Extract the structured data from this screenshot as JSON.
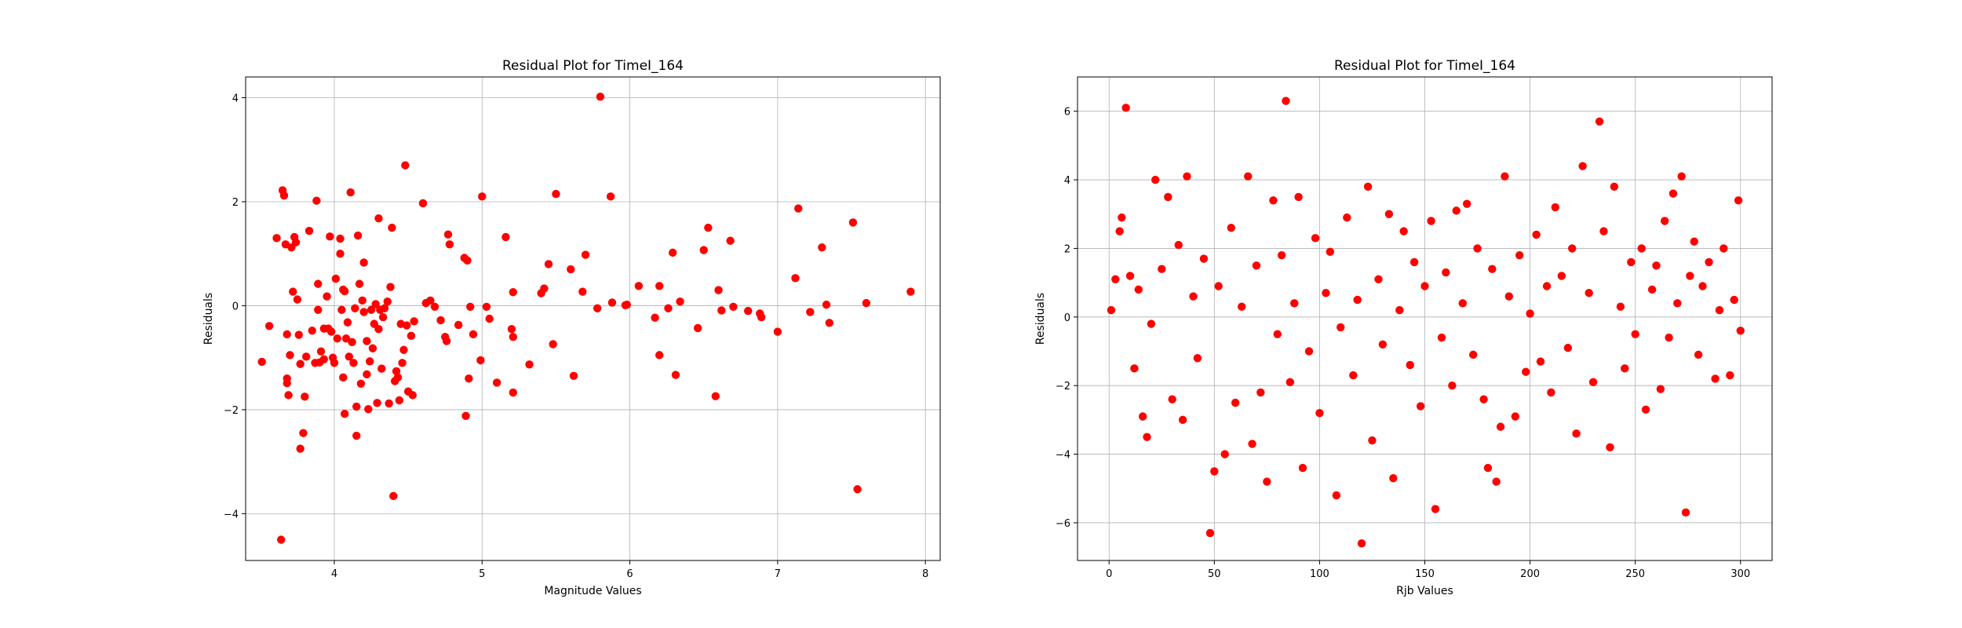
{
  "chart_data": [
    {
      "type": "scatter",
      "title": "Residual Plot for TimeI_164",
      "xlabel": "Magnitude Values",
      "ylabel": "Residuals",
      "xlim": [
        3.4,
        8.1
      ],
      "ylim": [
        -4.9,
        4.4
      ],
      "xticks": [
        4,
        5,
        6,
        7,
        8
      ],
      "yticks": [
        -4,
        -2,
        0,
        2,
        4
      ],
      "xtick_labels": [
        "4",
        "5",
        "6",
        "7",
        "8"
      ],
      "ytick_labels": [
        "−4",
        "−2",
        "0",
        "2",
        "4"
      ],
      "grid": true,
      "legend": "none",
      "marker_color": "#ff0000",
      "points": [
        [
          3.51,
          -1.08
        ],
        [
          3.56,
          -0.39
        ],
        [
          3.61,
          1.3
        ],
        [
          3.64,
          -4.5
        ],
        [
          3.65,
          2.22
        ],
        [
          3.66,
          2.12
        ],
        [
          3.67,
          1.18
        ],
        [
          3.68,
          -0.55
        ],
        [
          3.68,
          -1.4
        ],
        [
          3.68,
          -1.49
        ],
        [
          3.69,
          -1.72
        ],
        [
          3.7,
          -0.95
        ],
        [
          3.71,
          1.12
        ],
        [
          3.72,
          0.27
        ],
        [
          3.73,
          1.32
        ],
        [
          3.74,
          1.22
        ],
        [
          3.75,
          0.12
        ],
        [
          3.76,
          -0.56
        ],
        [
          3.77,
          -1.12
        ],
        [
          3.77,
          -2.75
        ],
        [
          3.79,
          -2.45
        ],
        [
          3.8,
          -1.75
        ],
        [
          3.81,
          -0.98
        ],
        [
          3.83,
          1.44
        ],
        [
          3.85,
          -0.48
        ],
        [
          3.87,
          -1.1
        ],
        [
          3.88,
          2.02
        ],
        [
          3.89,
          -0.08
        ],
        [
          3.89,
          0.42
        ],
        [
          3.9,
          -1.09
        ],
        [
          3.91,
          -0.88
        ],
        [
          3.93,
          -0.44
        ],
        [
          3.93,
          -1.03
        ],
        [
          3.95,
          0.18
        ],
        [
          3.96,
          -0.44
        ],
        [
          3.97,
          1.33
        ],
        [
          3.98,
          -0.5
        ],
        [
          3.99,
          -1.0
        ],
        [
          4.0,
          -1.1
        ],
        [
          4.01,
          0.52
        ],
        [
          4.02,
          -0.63
        ],
        [
          4.04,
          1.0
        ],
        [
          4.04,
          1.29
        ],
        [
          4.05,
          -0.08
        ],
        [
          4.06,
          0.31
        ],
        [
          4.06,
          -1.38
        ],
        [
          4.07,
          0.28
        ],
        [
          4.07,
          -2.08
        ],
        [
          4.08,
          -0.63
        ],
        [
          4.09,
          -0.32
        ],
        [
          4.1,
          -0.98
        ],
        [
          4.11,
          2.18
        ],
        [
          4.12,
          -0.7
        ],
        [
          4.13,
          -1.1
        ],
        [
          4.14,
          -0.05
        ],
        [
          4.15,
          -1.94
        ],
        [
          4.15,
          -2.5
        ],
        [
          4.16,
          1.35
        ],
        [
          4.17,
          0.42
        ],
        [
          4.18,
          -1.5
        ],
        [
          4.19,
          0.1
        ],
        [
          4.2,
          -0.12
        ],
        [
          4.2,
          0.83
        ],
        [
          4.22,
          -1.32
        ],
        [
          4.22,
          -0.68
        ],
        [
          4.23,
          -1.99
        ],
        [
          4.24,
          -1.07
        ],
        [
          4.25,
          -0.08
        ],
        [
          4.26,
          -0.82
        ],
        [
          4.27,
          -0.35
        ],
        [
          4.28,
          0.03
        ],
        [
          4.29,
          -1.87
        ],
        [
          4.3,
          -0.45
        ],
        [
          4.3,
          1.68
        ],
        [
          4.31,
          -0.08
        ],
        [
          4.32,
          -1.21
        ],
        [
          4.33,
          -0.22
        ],
        [
          4.34,
          -0.05
        ],
        [
          4.36,
          0.08
        ],
        [
          4.37,
          -1.88
        ],
        [
          4.38,
          0.36
        ],
        [
          4.39,
          1.5
        ],
        [
          4.4,
          -3.66
        ],
        [
          4.41,
          -1.45
        ],
        [
          4.42,
          -1.26
        ],
        [
          4.43,
          -1.38
        ],
        [
          4.44,
          -1.82
        ],
        [
          4.45,
          -0.35
        ],
        [
          4.46,
          -1.1
        ],
        [
          4.47,
          -0.85
        ],
        [
          4.48,
          2.7
        ],
        [
          4.49,
          -0.38
        ],
        [
          4.5,
          -1.65
        ],
        [
          4.52,
          -0.58
        ],
        [
          4.53,
          -1.72
        ],
        [
          4.54,
          -0.3
        ],
        [
          4.6,
          1.97
        ],
        [
          4.62,
          0.05
        ],
        [
          4.65,
          0.1
        ],
        [
          4.68,
          -0.02
        ],
        [
          4.72,
          -0.28
        ],
        [
          4.75,
          -0.6
        ],
        [
          4.76,
          -0.68
        ],
        [
          4.77,
          1.37
        ],
        [
          4.78,
          1.18
        ],
        [
          4.84,
          -0.37
        ],
        [
          4.88,
          0.92
        ],
        [
          4.89,
          -2.12
        ],
        [
          4.9,
          0.87
        ],
        [
          4.91,
          -1.4
        ],
        [
          4.92,
          -0.02
        ],
        [
          4.94,
          -0.55
        ],
        [
          4.99,
          -1.05
        ],
        [
          5.0,
          2.1
        ],
        [
          5.03,
          -0.02
        ],
        [
          5.05,
          -0.25
        ],
        [
          5.1,
          -1.48
        ],
        [
          5.16,
          1.32
        ],
        [
          5.2,
          -0.45
        ],
        [
          5.21,
          0.26
        ],
        [
          5.21,
          -0.6
        ],
        [
          5.21,
          -1.67
        ],
        [
          5.32,
          -1.13
        ],
        [
          5.4,
          0.24
        ],
        [
          5.42,
          0.33
        ],
        [
          5.45,
          0.8
        ],
        [
          5.48,
          -0.74
        ],
        [
          5.5,
          2.15
        ],
        [
          5.6,
          0.7
        ],
        [
          5.62,
          -1.35
        ],
        [
          5.68,
          0.27
        ],
        [
          5.7,
          0.98
        ],
        [
          5.78,
          -0.05
        ],
        [
          5.8,
          4.02
        ],
        [
          5.87,
          2.1
        ],
        [
          5.88,
          0.06
        ],
        [
          5.97,
          0.01
        ],
        [
          5.98,
          0.02
        ],
        [
          6.06,
          0.38
        ],
        [
          6.17,
          -0.23
        ],
        [
          6.2,
          0.38
        ],
        [
          6.2,
          -0.95
        ],
        [
          6.26,
          -0.05
        ],
        [
          6.29,
          1.02
        ],
        [
          6.31,
          -1.33
        ],
        [
          6.34,
          0.08
        ],
        [
          6.46,
          -0.43
        ],
        [
          6.5,
          1.07
        ],
        [
          6.53,
          1.5
        ],
        [
          6.58,
          -1.74
        ],
        [
          6.6,
          0.3
        ],
        [
          6.62,
          -0.09
        ],
        [
          6.68,
          1.25
        ],
        [
          6.7,
          -0.02
        ],
        [
          6.8,
          -0.1
        ],
        [
          6.88,
          -0.15
        ],
        [
          6.89,
          -0.22
        ],
        [
          7.0,
          -0.5
        ],
        [
          7.12,
          0.53
        ],
        [
          7.14,
          1.87
        ],
        [
          7.22,
          -0.12
        ],
        [
          7.3,
          1.12
        ],
        [
          7.33,
          0.02
        ],
        [
          7.35,
          -0.33
        ],
        [
          7.51,
          1.6
        ],
        [
          7.54,
          -3.53
        ],
        [
          7.6,
          0.05
        ],
        [
          7.9,
          0.27
        ]
      ]
    },
    {
      "type": "scatter",
      "title": "Residual Plot for TimeI_164",
      "xlabel": "Rjb Values",
      "ylabel": "Residuals",
      "xlim": [
        -15,
        315
      ],
      "ylim": [
        -7.1,
        7.0
      ],
      "xticks": [
        0,
        50,
        100,
        150,
        200,
        250,
        300
      ],
      "yticks": [
        -6,
        -4,
        -2,
        0,
        2,
        4,
        6
      ],
      "xtick_labels": [
        "0",
        "50",
        "100",
        "150",
        "200",
        "250",
        "300"
      ],
      "ytick_labels": [
        "−6",
        "−4",
        "−2",
        "0",
        "2",
        "4",
        "6"
      ],
      "grid": true,
      "legend": "none",
      "marker_color": "#ff0000",
      "points": [
        [
          1,
          0.2
        ],
        [
          3,
          1.1
        ],
        [
          5,
          2.5
        ],
        [
          6,
          2.9
        ],
        [
          8,
          6.1
        ],
        [
          10,
          1.2
        ],
        [
          12,
          -1.5
        ],
        [
          14,
          0.8
        ],
        [
          16,
          -2.9
        ],
        [
          18,
          -3.5
        ],
        [
          20,
          -0.2
        ],
        [
          22,
          4.0
        ],
        [
          25,
          1.4
        ],
        [
          28,
          3.5
        ],
        [
          30,
          -2.4
        ],
        [
          33,
          2.1
        ],
        [
          35,
          -3.0
        ],
        [
          37,
          4.1
        ],
        [
          40,
          0.6
        ],
        [
          42,
          -1.2
        ],
        [
          45,
          1.7
        ],
        [
          48,
          -6.3
        ],
        [
          50,
          -4.5
        ],
        [
          52,
          0.9
        ],
        [
          55,
          -4.0
        ],
        [
          58,
          2.6
        ],
        [
          60,
          -2.5
        ],
        [
          63,
          0.3
        ],
        [
          66,
          4.1
        ],
        [
          68,
          -3.7
        ],
        [
          70,
          1.5
        ],
        [
          72,
          -2.2
        ],
        [
          75,
          -4.8
        ],
        [
          78,
          3.4
        ],
        [
          80,
          -0.5
        ],
        [
          82,
          1.8
        ],
        [
          84,
          6.3
        ],
        [
          86,
          -1.9
        ],
        [
          88,
          0.4
        ],
        [
          90,
          3.5
        ],
        [
          92,
          -4.4
        ],
        [
          95,
          -1.0
        ],
        [
          98,
          2.3
        ],
        [
          100,
          -2.8
        ],
        [
          103,
          0.7
        ],
        [
          105,
          1.9
        ],
        [
          108,
          -5.2
        ],
        [
          110,
          -0.3
        ],
        [
          113,
          2.9
        ],
        [
          116,
          -1.7
        ],
        [
          118,
          0.5
        ],
        [
          120,
          -6.6
        ],
        [
          123,
          3.8
        ],
        [
          125,
          -3.6
        ],
        [
          128,
          1.1
        ],
        [
          130,
          -0.8
        ],
        [
          133,
          3.0
        ],
        [
          135,
          -4.7
        ],
        [
          138,
          0.2
        ],
        [
          140,
          2.5
        ],
        [
          143,
          -1.4
        ],
        [
          145,
          1.6
        ],
        [
          148,
          -2.6
        ],
        [
          150,
          0.9
        ],
        [
          153,
          2.8
        ],
        [
          155,
          -5.6
        ],
        [
          158,
          -0.6
        ],
        [
          160,
          1.3
        ],
        [
          163,
          -2.0
        ],
        [
          165,
          3.1
        ],
        [
          168,
          0.4
        ],
        [
          170,
          3.3
        ],
        [
          173,
          -1.1
        ],
        [
          175,
          2.0
        ],
        [
          178,
          -2.4
        ],
        [
          180,
          -4.4
        ],
        [
          182,
          1.4
        ],
        [
          184,
          -4.8
        ],
        [
          186,
          -3.2
        ],
        [
          188,
          4.1
        ],
        [
          190,
          0.6
        ],
        [
          193,
          -2.9
        ],
        [
          195,
          1.8
        ],
        [
          198,
          -1.6
        ],
        [
          200,
          0.1
        ],
        [
          203,
          2.4
        ],
        [
          205,
          -1.3
        ],
        [
          208,
          0.9
        ],
        [
          210,
          -2.2
        ],
        [
          212,
          3.2
        ],
        [
          215,
          1.2
        ],
        [
          218,
          -0.9
        ],
        [
          220,
          2.0
        ],
        [
          222,
          -3.4
        ],
        [
          225,
          4.4
        ],
        [
          228,
          0.7
        ],
        [
          230,
          -1.9
        ],
        [
          233,
          5.7
        ],
        [
          235,
          2.5
        ],
        [
          238,
          -3.8
        ],
        [
          240,
          3.8
        ],
        [
          243,
          0.3
        ],
        [
          245,
          -1.5
        ],
        [
          248,
          1.6
        ],
        [
          250,
          -0.5
        ],
        [
          253,
          2.0
        ],
        [
          255,
          -2.7
        ],
        [
          258,
          0.8
        ],
        [
          260,
          1.5
        ],
        [
          262,
          -2.1
        ],
        [
          264,
          2.8
        ],
        [
          266,
          -0.6
        ],
        [
          268,
          3.6
        ],
        [
          270,
          0.4
        ],
        [
          272,
          4.1
        ],
        [
          274,
          -5.7
        ],
        [
          276,
          1.2
        ],
        [
          278,
          2.2
        ],
        [
          280,
          -1.1
        ],
        [
          282,
          0.9
        ],
        [
          285,
          1.6
        ],
        [
          288,
          -1.8
        ],
        [
          290,
          0.2
        ],
        [
          292,
          2.0
        ],
        [
          295,
          -1.7
        ],
        [
          297,
          0.5
        ],
        [
          299,
          3.4
        ],
        [
          300,
          -0.4
        ]
      ]
    }
  ]
}
